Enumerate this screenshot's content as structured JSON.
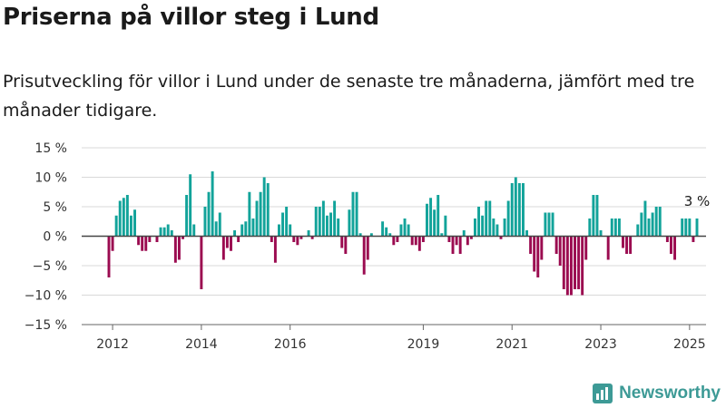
{
  "header": {
    "title": "Priserna på villor steg i Lund",
    "subtitle": "Prisutveckling för villor i Lund under de senaste tre månaderna, jämfört med tre månader tidigare."
  },
  "branding": {
    "logo_text": "Newsworthy",
    "logo_icon": "newsworthy-logo-icon"
  },
  "colors": {
    "positive": "#12a39a",
    "negative": "#9b0b50",
    "grid": "#d9d9d9",
    "zero_line": "#444444",
    "logo": "#3d9a96"
  },
  "chart_data": {
    "type": "bar",
    "title": "Priserna på villor steg i Lund",
    "xlabel": "",
    "ylabel": "",
    "ylim": [
      -15,
      15
    ],
    "yticks": [
      -15,
      -10,
      -5,
      0,
      5,
      10,
      15
    ],
    "ytick_labels": [
      "−15 %",
      "−10 %",
      "−5 %",
      "0 %",
      "5 %",
      "10 %",
      "15 %"
    ],
    "xticks": [
      {
        "label": "2012",
        "x": "2012-01"
      },
      {
        "label": "2014",
        "x": "2014-01"
      },
      {
        "label": "2016",
        "x": "2016-01"
      },
      {
        "label": "2019",
        "x": "2019-01"
      },
      {
        "label": "2021",
        "x": "2021-01"
      },
      {
        "label": "2023",
        "x": "2023-01"
      },
      {
        "label": "2025",
        "x": "2025-01"
      }
    ],
    "grid": true,
    "bar_color_rule": "positive values teal, negative values crimson",
    "annotation": {
      "text": "3 %",
      "x": "2025-03"
    },
    "x": [
      "2011-12",
      "2012-01",
      "2012-02",
      "2012-03",
      "2012-04",
      "2012-05",
      "2012-06",
      "2012-07",
      "2012-08",
      "2012-09",
      "2012-10",
      "2012-11",
      "2012-12",
      "2013-01",
      "2013-02",
      "2013-03",
      "2013-04",
      "2013-05",
      "2013-06",
      "2013-07",
      "2013-08",
      "2013-09",
      "2013-10",
      "2013-11",
      "2013-12",
      "2014-01",
      "2014-02",
      "2014-03",
      "2014-04",
      "2014-05",
      "2014-06",
      "2014-07",
      "2014-08",
      "2014-09",
      "2014-10",
      "2014-11",
      "2014-12",
      "2015-01",
      "2015-02",
      "2015-03",
      "2015-04",
      "2015-05",
      "2015-06",
      "2015-07",
      "2015-08",
      "2015-09",
      "2015-10",
      "2015-11",
      "2015-12",
      "2016-01",
      "2016-02",
      "2016-03",
      "2016-04",
      "2016-05",
      "2016-06",
      "2016-07",
      "2016-08",
      "2016-09",
      "2016-10",
      "2016-11",
      "2016-12",
      "2017-01",
      "2017-02",
      "2017-03",
      "2017-04",
      "2017-05",
      "2017-06",
      "2017-07",
      "2017-08",
      "2017-09",
      "2017-10",
      "2017-11",
      "2017-12",
      "2018-01",
      "2018-02",
      "2018-03",
      "2018-04",
      "2018-05",
      "2018-06",
      "2018-07",
      "2018-08",
      "2018-09",
      "2018-10",
      "2018-11",
      "2018-12",
      "2019-01",
      "2019-02",
      "2019-03",
      "2019-04",
      "2019-05",
      "2019-06",
      "2019-07",
      "2019-08",
      "2019-09",
      "2019-10",
      "2019-11",
      "2019-12",
      "2020-01",
      "2020-02",
      "2020-03",
      "2020-04",
      "2020-05",
      "2020-06",
      "2020-07",
      "2020-08",
      "2020-09",
      "2020-10",
      "2020-11",
      "2020-12",
      "2021-01",
      "2021-02",
      "2021-03",
      "2021-04",
      "2021-05",
      "2021-06",
      "2021-07",
      "2021-08",
      "2021-09",
      "2021-10",
      "2021-11",
      "2021-12",
      "2022-01",
      "2022-02",
      "2022-03",
      "2022-04",
      "2022-05",
      "2022-06",
      "2022-07",
      "2022-08",
      "2022-09",
      "2022-10",
      "2022-11",
      "2022-12",
      "2023-01",
      "2023-02",
      "2023-03",
      "2023-04",
      "2023-05",
      "2023-06",
      "2023-07",
      "2023-08",
      "2023-09",
      "2023-10",
      "2023-11",
      "2023-12",
      "2024-01",
      "2024-02",
      "2024-03",
      "2024-04",
      "2024-05",
      "2024-06",
      "2024-07",
      "2024-08",
      "2024-09",
      "2024-10",
      "2024-11",
      "2024-12",
      "2025-01",
      "2025-02",
      "2025-03"
    ],
    "values": [
      -7,
      -2.5,
      3.5,
      6,
      6.5,
      7,
      3.5,
      4.5,
      -1.5,
      -2.5,
      -2.5,
      -1,
      0,
      -1,
      1.5,
      1.5,
      2,
      1,
      -4.5,
      -4,
      -0.5,
      7,
      10.5,
      2,
      0,
      -9,
      5,
      7.5,
      11,
      2.5,
      4,
      -4,
      -2,
      -2.5,
      1,
      -1,
      2,
      2.5,
      7.5,
      3,
      6,
      7.5,
      10,
      9,
      -1,
      -4.5,
      2,
      4,
      5,
      2,
      -1,
      -1.5,
      -0.5,
      0,
      1,
      -0.5,
      5,
      5,
      6,
      3.5,
      4,
      6,
      3,
      -2,
      -3,
      4.5,
      7.5,
      7.5,
      0.5,
      -6.5,
      -4,
      0.5,
      0,
      0,
      2.5,
      1.5,
      0.5,
      -1.5,
      -1,
      2,
      3,
      2,
      -1.5,
      -1.5,
      -2.5,
      -1,
      5.5,
      6.5,
      4.5,
      7,
      0.5,
      3.5,
      -1,
      -3,
      -1.5,
      -3,
      1,
      -1.5,
      -0.5,
      3,
      5,
      3.5,
      6,
      6,
      3,
      2,
      -0.5,
      3,
      6,
      9,
      10,
      9,
      9,
      1,
      -3,
      -6,
      -7,
      -4,
      4,
      4,
      4,
      -3,
      -5,
      -9,
      -10,
      -10,
      -9,
      -9,
      -10,
      -4,
      3,
      7,
      7,
      1,
      0,
      -4,
      3,
      3,
      3,
      -2,
      -3,
      -3,
      0,
      2,
      4,
      6,
      3,
      4,
      5,
      5,
      0,
      -1,
      -3,
      -4,
      0,
      3,
      3,
      3,
      -1,
      3
    ]
  }
}
